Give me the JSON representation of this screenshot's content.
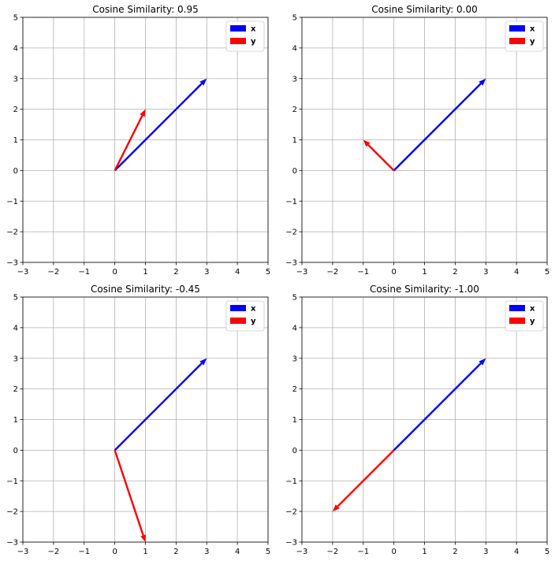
{
  "chart_data": [
    {
      "type": "vector",
      "title": "Cosine Similarity: 0.95",
      "xlim": [
        -3,
        5
      ],
      "ylim": [
        -3,
        5
      ],
      "xticks": [
        "−3",
        "−2",
        "−1",
        "0",
        "1",
        "2",
        "3",
        "4",
        "5"
      ],
      "yticks": [
        "−3",
        "−2",
        "−1",
        "0",
        "1",
        "2",
        "3",
        "4",
        "5"
      ],
      "grid": true,
      "legend_position": "top-right",
      "series": [
        {
          "name": "x",
          "color": "#0000ff",
          "start": [
            0,
            0
          ],
          "end": [
            3,
            3
          ]
        },
        {
          "name": "y",
          "color": "#ff0000",
          "start": [
            0,
            0
          ],
          "end": [
            1,
            2
          ]
        }
      ]
    },
    {
      "type": "vector",
      "title": "Cosine Similarity: 0.00",
      "xlim": [
        -3,
        5
      ],
      "ylim": [
        -3,
        5
      ],
      "xticks": [
        "−3",
        "−2",
        "−1",
        "0",
        "1",
        "2",
        "3",
        "4",
        "5"
      ],
      "yticks": [
        "−3",
        "−2",
        "−1",
        "0",
        "1",
        "2",
        "3",
        "4",
        "5"
      ],
      "grid": true,
      "legend_position": "top-right",
      "series": [
        {
          "name": "x",
          "color": "#0000ff",
          "start": [
            0,
            0
          ],
          "end": [
            3,
            3
          ]
        },
        {
          "name": "y",
          "color": "#ff0000",
          "start": [
            0,
            0
          ],
          "end": [
            -1,
            1
          ]
        }
      ]
    },
    {
      "type": "vector",
      "title": "Cosine Similarity: -0.45",
      "xlim": [
        -3,
        5
      ],
      "ylim": [
        -3,
        5
      ],
      "xticks": [
        "−3",
        "−2",
        "−1",
        "0",
        "1",
        "2",
        "3",
        "4",
        "5"
      ],
      "yticks": [
        "−3",
        "−2",
        "−1",
        "0",
        "1",
        "2",
        "3",
        "4",
        "5"
      ],
      "grid": true,
      "legend_position": "top-right",
      "series": [
        {
          "name": "x",
          "color": "#0000ff",
          "start": [
            0,
            0
          ],
          "end": [
            3,
            3
          ]
        },
        {
          "name": "y",
          "color": "#ff0000",
          "start": [
            0,
            0
          ],
          "end": [
            1,
            -3
          ]
        }
      ]
    },
    {
      "type": "vector",
      "title": "Cosine Similarity: -1.00",
      "xlim": [
        -3,
        5
      ],
      "ylim": [
        -3,
        5
      ],
      "xticks": [
        "−3",
        "−2",
        "−1",
        "0",
        "1",
        "2",
        "3",
        "4",
        "5"
      ],
      "yticks": [
        "−3",
        "−2",
        "−1",
        "0",
        "1",
        "2",
        "3",
        "4",
        "5"
      ],
      "grid": true,
      "legend_position": "top-right",
      "series": [
        {
          "name": "x",
          "color": "#0000ff",
          "start": [
            0,
            0
          ],
          "end": [
            3,
            3
          ]
        },
        {
          "name": "y",
          "color": "#ff0000",
          "start": [
            0,
            0
          ],
          "end": [
            -2,
            -2
          ]
        }
      ]
    }
  ]
}
